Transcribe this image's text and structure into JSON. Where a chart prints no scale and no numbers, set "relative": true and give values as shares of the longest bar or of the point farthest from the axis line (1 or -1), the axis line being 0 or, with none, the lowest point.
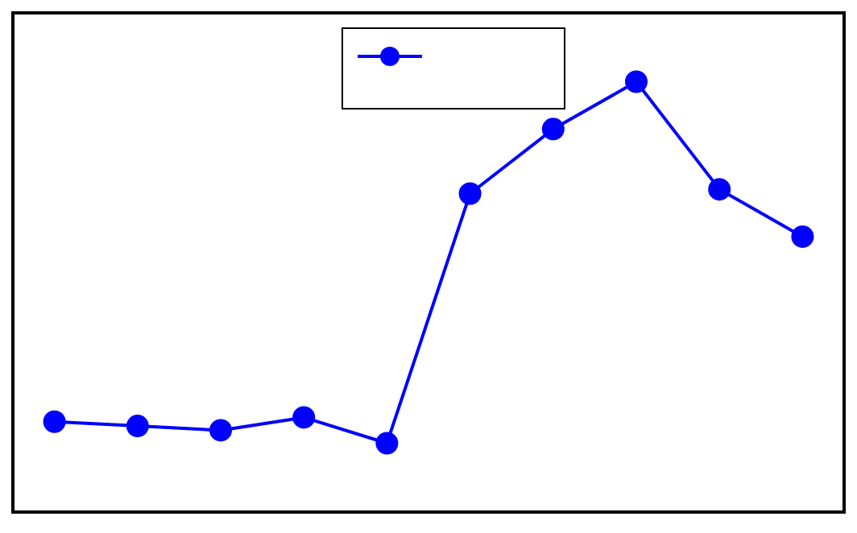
{
  "chart_data": {
    "type": "line",
    "relative": true,
    "categories": [
      null,
      null,
      null,
      null,
      null,
      null,
      null,
      null,
      null,
      null
    ],
    "series": [
      {
        "color": "#0000ff",
        "values": [
          0.21,
          0.2,
          0.19,
          0.22,
          0.16,
          0.74,
          0.89,
          1,
          0.75,
          0.64
        ]
      }
    ],
    "marker": "circle",
    "line_style": "solid",
    "grid": false
  }
}
